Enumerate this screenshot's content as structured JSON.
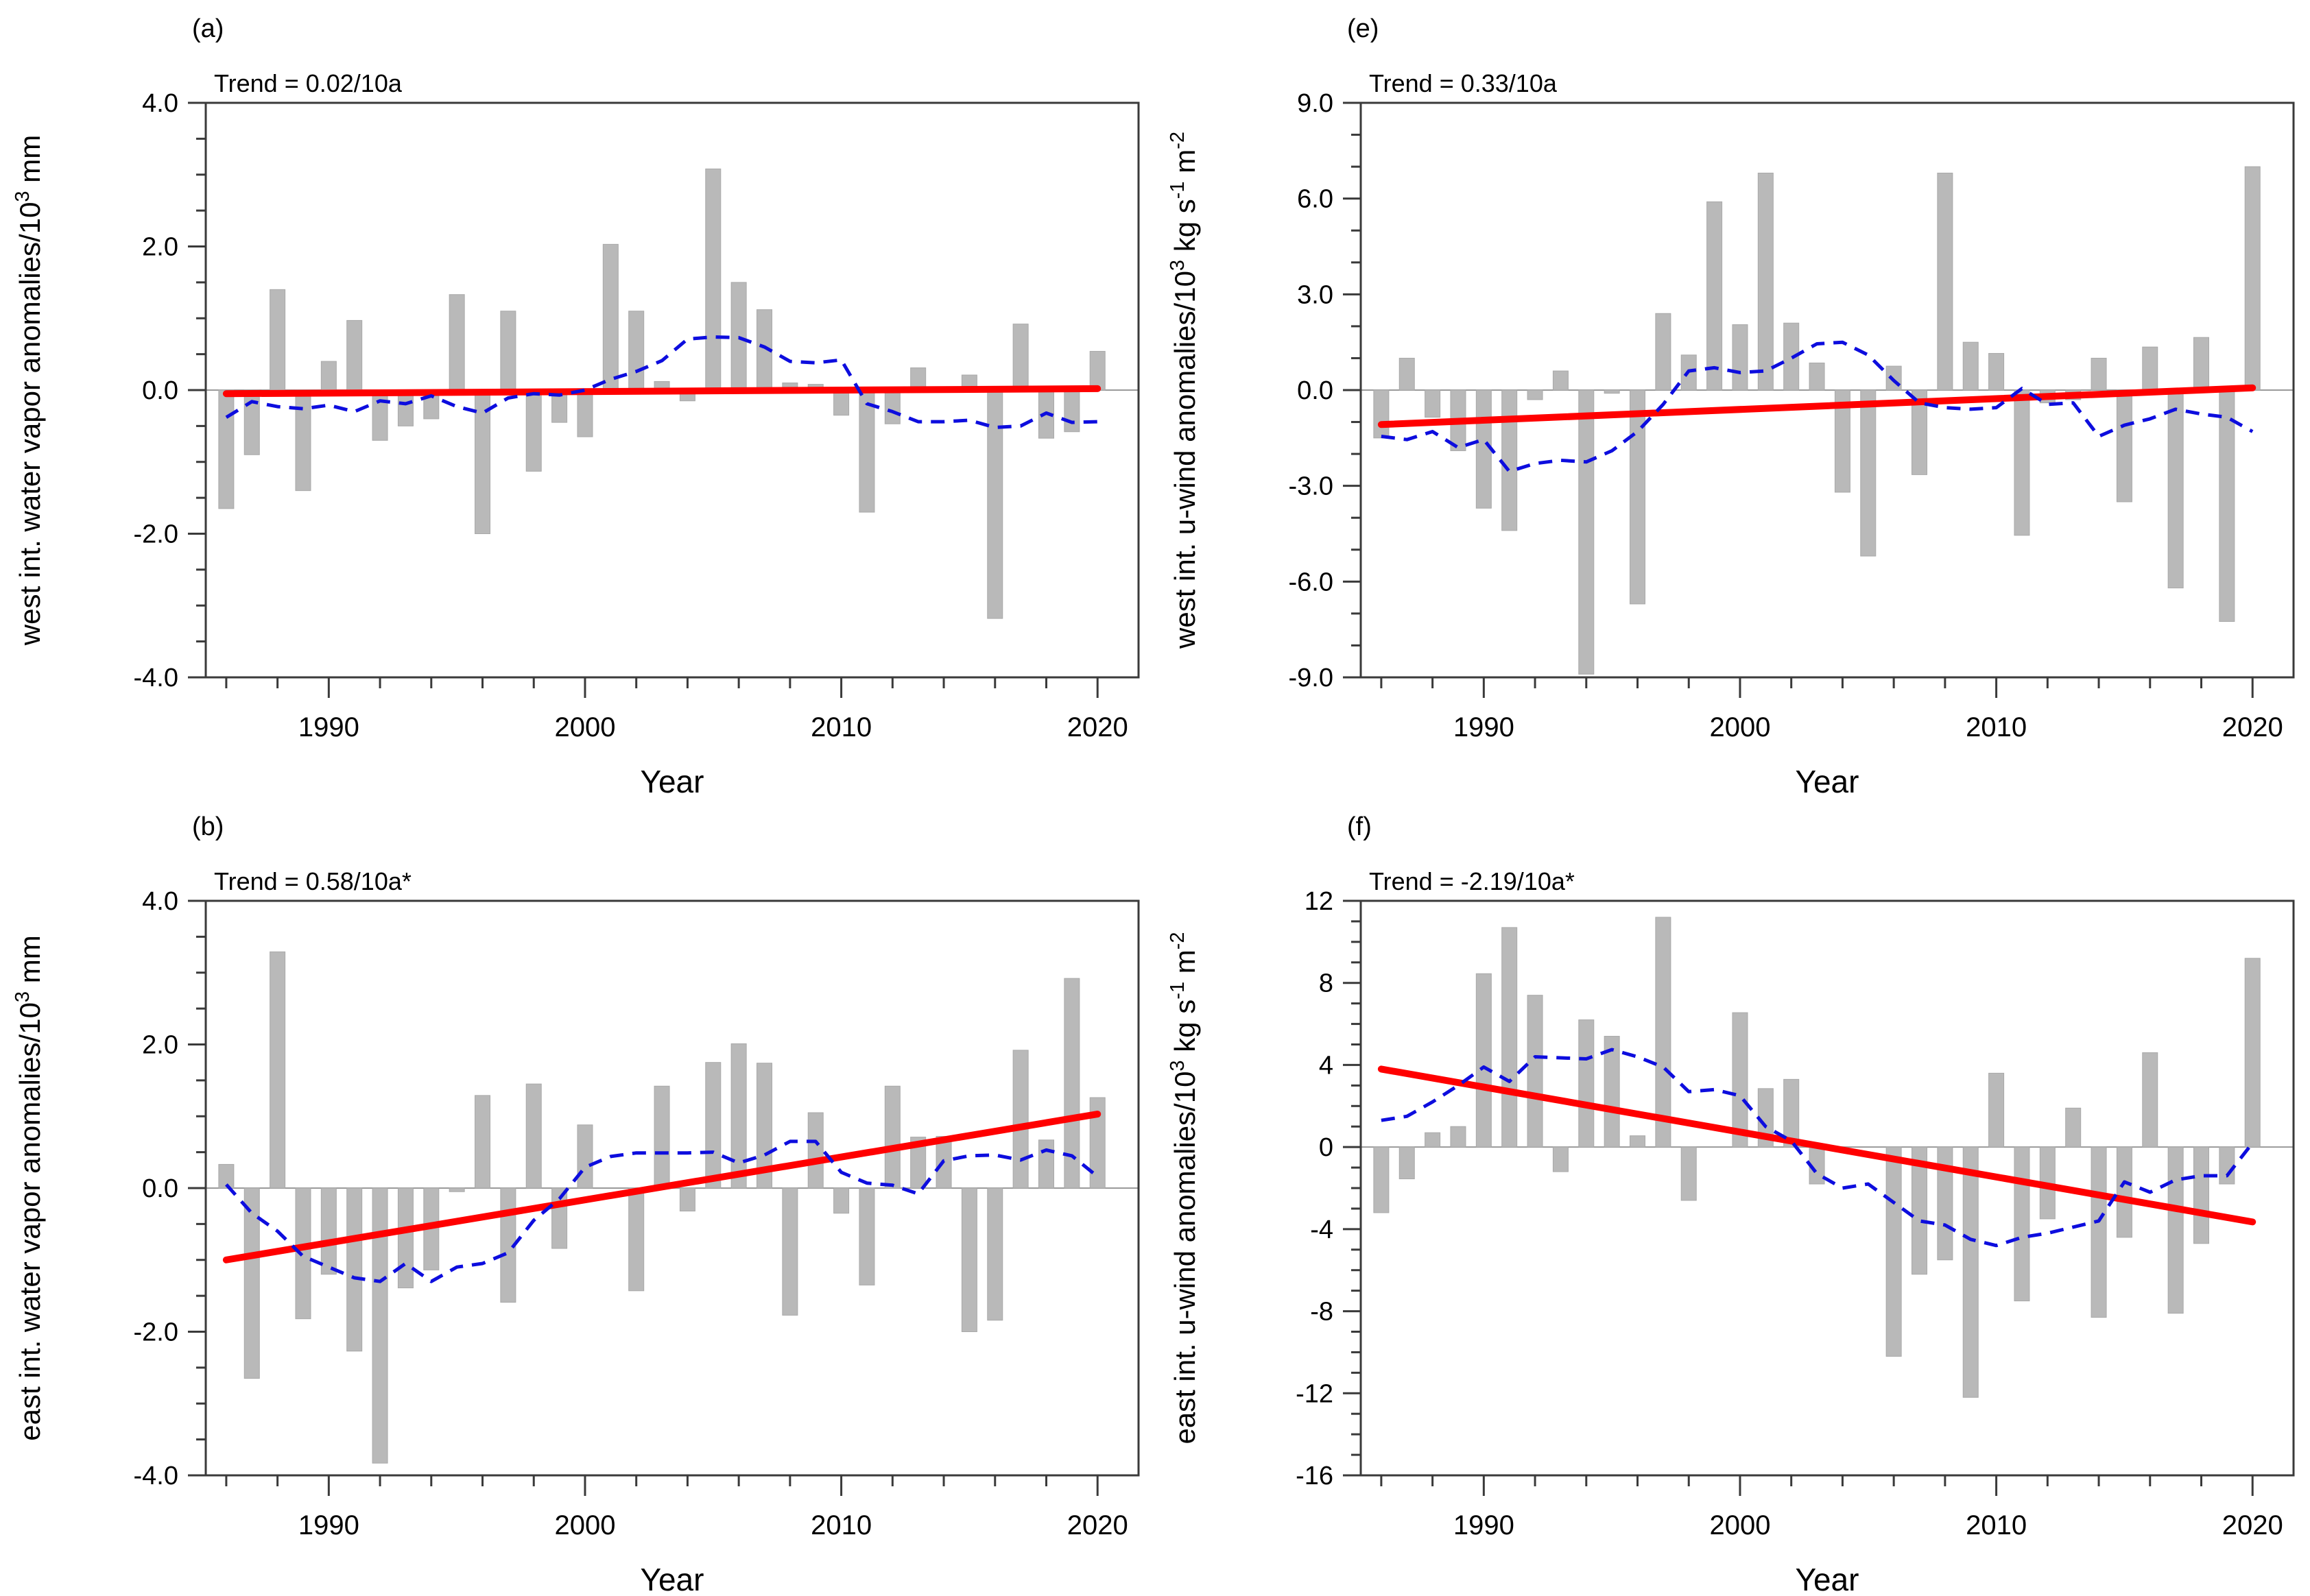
{
  "page": {
    "background": "#ffffff"
  },
  "colors": {
    "bar": "#b9b9b9",
    "bar_edge": "#a9a9a9",
    "trend_line": "#ff0000",
    "smoothed_line": "#0d0dde",
    "axis": "#3a3a3a",
    "zero_line": "#9a9a9a",
    "text": "#000000"
  },
  "x_axis": {
    "label": "Year",
    "major_ticks": [
      1990,
      2000,
      2010,
      2020
    ],
    "minor_step": 2,
    "xlim": [
      1985.2,
      2021.6
    ],
    "years": [
      1986,
      1987,
      1988,
      1989,
      1990,
      1991,
      1992,
      1993,
      1994,
      1995,
      1996,
      1997,
      1998,
      1999,
      2000,
      2001,
      2002,
      2003,
      2004,
      2005,
      2006,
      2007,
      2008,
      2009,
      2010,
      2011,
      2012,
      2013,
      2014,
      2015,
      2016,
      2017,
      2018,
      2019,
      2020
    ]
  },
  "chart_data": [
    {
      "type": "bar",
      "panel_label": "(a)",
      "trend_label": "Trend = 0.02/10a",
      "ylabel_segments": [
        {
          "text": "west int. water vapor anomalies/10"
        },
        {
          "sup": "3"
        },
        {
          "text": " mm"
        }
      ],
      "ylim": [
        -4,
        4
      ],
      "y_major_ticks": [
        {
          "v": 4,
          "label": "4.0"
        },
        {
          "v": 2,
          "label": "2.0"
        },
        {
          "v": 0,
          "label": "0.0"
        },
        {
          "v": -2,
          "label": "-2.0"
        },
        {
          "v": -4,
          "label": "-4.0"
        }
      ],
      "y_minor_step": 0.5,
      "bars": [
        -1.65,
        -0.9,
        1.4,
        -1.4,
        0.4,
        0.97,
        -0.7,
        -0.5,
        -0.4,
        1.33,
        -2.0,
        1.1,
        -1.13,
        -0.45,
        -0.65,
        2.03,
        1.1,
        0.12,
        -0.15,
        3.08,
        1.5,
        1.12,
        0.1,
        0.08,
        -0.35,
        -1.7,
        -0.47,
        0.31,
        0.0,
        0.21,
        -3.18,
        0.92,
        -0.67,
        -0.58,
        0.54
      ],
      "smoothed": [
        -0.38,
        -0.16,
        -0.23,
        -0.26,
        -0.21,
        -0.3,
        -0.15,
        -0.19,
        -0.08,
        -0.23,
        -0.32,
        -0.11,
        -0.05,
        -0.07,
        0.0,
        0.15,
        0.26,
        0.41,
        0.71,
        0.74,
        0.73,
        0.6,
        0.4,
        0.38,
        0.42,
        -0.19,
        -0.3,
        -0.44,
        -0.44,
        -0.42,
        -0.52,
        -0.5,
        -0.32,
        -0.45,
        -0.44
      ],
      "trend_line": {
        "start_year": 1986,
        "end_year": 2020,
        "start_value": -0.05,
        "end_value": 0.02
      }
    },
    {
      "type": "bar",
      "panel_label": "(e)",
      "trend_label": "Trend = 0.33/10a",
      "ylabel_segments": [
        {
          "text": "west int. u-wind anomalies/10"
        },
        {
          "sup": "3"
        },
        {
          "text": " kg s"
        },
        {
          "sup": "-1"
        },
        {
          "text": " m"
        },
        {
          "sup": "-2"
        }
      ],
      "ylim": [
        -9,
        9
      ],
      "y_major_ticks": [
        {
          "v": 9,
          "label": "9.0"
        },
        {
          "v": 6,
          "label": "6.0"
        },
        {
          "v": 3,
          "label": "3.0"
        },
        {
          "v": 0,
          "label": "0.0"
        },
        {
          "v": -3,
          "label": "-3.0"
        },
        {
          "v": -6,
          "label": "-6.0"
        },
        {
          "v": -9,
          "label": "-9.0"
        }
      ],
      "y_minor_step": 1,
      "bars": [
        -1.5,
        1.0,
        -0.85,
        -1.9,
        -3.7,
        -4.4,
        -0.3,
        0.6,
        -8.9,
        -0.1,
        -6.7,
        2.4,
        1.1,
        5.9,
        2.05,
        6.8,
        2.1,
        0.85,
        -3.2,
        -5.2,
        0.75,
        -2.65,
        6.8,
        1.5,
        1.15,
        -4.55,
        -0.4,
        -0.3,
        1.0,
        -3.5,
        1.35,
        -6.2,
        1.65,
        -7.25,
        7.0
      ],
      "smoothed": [
        -1.45,
        -1.55,
        -1.3,
        -1.8,
        -1.55,
        -2.55,
        -2.3,
        -2.2,
        -2.25,
        -1.9,
        -1.3,
        -0.45,
        0.6,
        0.7,
        0.55,
        0.6,
        1.0,
        1.45,
        1.5,
        1.1,
        0.3,
        -0.4,
        -0.55,
        -0.6,
        -0.55,
        0.05,
        -0.45,
        -0.4,
        -1.45,
        -1.1,
        -0.9,
        -0.6,
        -0.75,
        -0.85,
        -1.3
      ],
      "trend_line": {
        "start_year": 1986,
        "end_year": 2020,
        "start_value": -1.08,
        "end_value": 0.07
      }
    },
    {
      "type": "bar",
      "panel_label": "(b)",
      "trend_label": "Trend = 0.58/10a*",
      "ylabel_segments": [
        {
          "text": "east int. water vapor anomalies/10"
        },
        {
          "sup": "3"
        },
        {
          "text": " mm"
        }
      ],
      "ylim": [
        -4,
        4
      ],
      "y_major_ticks": [
        {
          "v": 4,
          "label": "4.0"
        },
        {
          "v": 2,
          "label": "2.0"
        },
        {
          "v": 0,
          "label": "0.0"
        },
        {
          "v": -2,
          "label": "-2.0"
        },
        {
          "v": -4,
          "label": "-4.0"
        }
      ],
      "y_minor_step": 0.5,
      "bars": [
        0.33,
        -2.65,
        3.29,
        -1.82,
        -1.2,
        -2.27,
        -3.83,
        -1.39,
        -1.14,
        -0.05,
        1.29,
        -1.59,
        1.45,
        -0.84,
        0.88,
        0.0,
        -1.43,
        1.42,
        -0.32,
        1.75,
        2.01,
        1.74,
        -1.77,
        1.05,
        -0.35,
        -1.35,
        1.42,
        0.71,
        0.72,
        -2.0,
        -1.84,
        1.92,
        0.67,
        2.92,
        1.26
      ],
      "smoothed": [
        0.05,
        -0.35,
        -0.6,
        -0.95,
        -1.1,
        -1.25,
        -1.3,
        -1.05,
        -1.3,
        -1.1,
        -1.05,
        -0.9,
        -0.45,
        -0.15,
        0.29,
        0.44,
        0.49,
        0.49,
        0.49,
        0.5,
        0.35,
        0.46,
        0.65,
        0.65,
        0.22,
        0.07,
        0.04,
        -0.08,
        0.38,
        0.45,
        0.46,
        0.39,
        0.53,
        0.45,
        0.16
      ],
      "trend_line": {
        "start_year": 1986,
        "end_year": 2020,
        "start_value": -1.0,
        "end_value": 1.03
      }
    },
    {
      "type": "bar",
      "panel_label": "(f)",
      "trend_label": "Trend = -2.19/10a*",
      "ylabel_segments": [
        {
          "text": "east int. u-wind anomalies/10"
        },
        {
          "sup": "3"
        },
        {
          "text": " kg s"
        },
        {
          "sup": "-1"
        },
        {
          "text": " m"
        },
        {
          "sup": "-2"
        }
      ],
      "ylim": [
        -16,
        12
      ],
      "y_major_ticks": [
        {
          "v": 12,
          "label": "12"
        },
        {
          "v": 8,
          "label": "8"
        },
        {
          "v": 4,
          "label": "4"
        },
        {
          "v": 0,
          "label": "0"
        },
        {
          "v": -4,
          "label": "-4"
        },
        {
          "v": -8,
          "label": "-8"
        },
        {
          "v": -12,
          "label": "-12"
        },
        {
          "v": -16,
          "label": "-16"
        }
      ],
      "y_minor_step": 1,
      "bars": [
        -3.2,
        -1.55,
        0.7,
        1.0,
        8.45,
        10.7,
        7.4,
        -1.2,
        6.2,
        5.4,
        0.55,
        11.2,
        -2.6,
        0.0,
        6.55,
        2.85,
        3.3,
        -1.8,
        0.0,
        0.0,
        -10.2,
        -6.2,
        -5.5,
        -12.2,
        3.6,
        -7.5,
        -3.5,
        1.9,
        -8.3,
        -4.4,
        4.6,
        -8.1,
        -4.7,
        -1.8,
        9.2
      ],
      "smoothed": [
        1.3,
        1.5,
        2.2,
        3.0,
        3.9,
        3.2,
        4.4,
        4.35,
        4.3,
        4.75,
        4.4,
        3.9,
        2.7,
        2.8,
        2.5,
        1.0,
        0.3,
        -1.3,
        -2.0,
        -1.8,
        -2.7,
        -3.6,
        -3.8,
        -4.5,
        -4.8,
        -4.4,
        -4.2,
        -3.9,
        -3.6,
        -1.7,
        -2.2,
        -1.6,
        -1.4,
        -1.4,
        0.2
      ],
      "trend_line": {
        "start_year": 1986,
        "end_year": 2020,
        "start_value": 3.8,
        "end_value": -3.65
      }
    }
  ]
}
